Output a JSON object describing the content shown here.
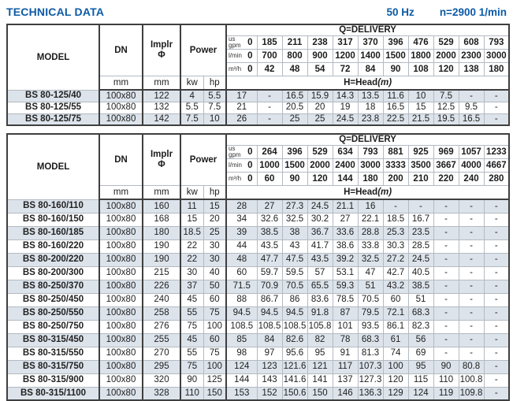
{
  "header": {
    "title": "TECHNICAL DATA",
    "frequency": "50 Hz",
    "speed": "n=2900 1/min"
  },
  "labels": {
    "model": "MODEL",
    "dn": "DN",
    "implr1": "Implr",
    "implr2": "Φ",
    "power": "Power",
    "mm": "mm",
    "kw": "kw",
    "hp": "hp",
    "q_delivery": "Q=DELIVERY",
    "head": "H=Head",
    "head_unit": "(m)",
    "unit_us": "us",
    "unit_gpm": "gpm",
    "unit_lmin": "l/min",
    "unit_m3h": "m³/h",
    "zero": "0"
  },
  "colors": {
    "accent_blue": "#0d5ba6",
    "stripe": "#dce3eb",
    "border_dark": "#3f3f3f",
    "border_light": "#b3bac2"
  },
  "table1": {
    "q_usgpm": [
      "185",
      "211",
      "238",
      "317",
      "370",
      "396",
      "476",
      "529",
      "608",
      "793"
    ],
    "q_lmin": [
      "700",
      "800",
      "900",
      "1200",
      "1400",
      "1500",
      "1800",
      "2000",
      "2300",
      "3000"
    ],
    "q_m3h": [
      "42",
      "48",
      "54",
      "72",
      "84",
      "90",
      "108",
      "120",
      "138",
      "180"
    ],
    "rows": [
      {
        "model": "BS 80-125/40",
        "dn": "100x80",
        "implr": "122",
        "kw": "4",
        "hp": "5.5",
        "head": [
          "17",
          "-",
          "16.5",
          "15.9",
          "14.3",
          "13.5",
          "11.6",
          "10",
          "7.5",
          "-",
          "-"
        ]
      },
      {
        "model": "BS 80-125/55",
        "dn": "100x80",
        "implr": "132",
        "kw": "5.5",
        "hp": "7.5",
        "head": [
          "21",
          "-",
          "20.5",
          "20",
          "19",
          "18",
          "16.5",
          "15",
          "12.5",
          "9.5",
          "-"
        ]
      },
      {
        "model": "BS 80-125/75",
        "dn": "100x80",
        "implr": "142",
        "kw": "7.5",
        "hp": "10",
        "head": [
          "26",
          "-",
          "25",
          "25",
          "24.5",
          "23.8",
          "22.5",
          "21.5",
          "19.5",
          "16.5",
          "-"
        ]
      }
    ]
  },
  "table2": {
    "q_usgpm": [
      "264",
      "396",
      "529",
      "634",
      "793",
      "881",
      "925",
      "969",
      "1057",
      "1233"
    ],
    "q_lmin": [
      "1000",
      "1500",
      "2000",
      "2400",
      "3000",
      "3333",
      "3500",
      "3667",
      "4000",
      "4667"
    ],
    "q_m3h": [
      "60",
      "90",
      "120",
      "144",
      "180",
      "200",
      "210",
      "220",
      "240",
      "280"
    ],
    "rows": [
      {
        "model": "BS 80-160/110",
        "dn": "100x80",
        "implr": "160",
        "kw": "11",
        "hp": "15",
        "head": [
          "28",
          "27",
          "27.3",
          "24.5",
          "21.1",
          "16",
          "-",
          "-",
          "-",
          "-",
          "-"
        ]
      },
      {
        "model": "BS 80-160/150",
        "dn": "100x80",
        "implr": "168",
        "kw": "15",
        "hp": "20",
        "head": [
          "34",
          "32.6",
          "32.5",
          "30.2",
          "27",
          "22.1",
          "18.5",
          "16.7",
          "-",
          "-",
          "-"
        ]
      },
      {
        "model": "BS 80-160/185",
        "dn": "100x80",
        "implr": "180",
        "kw": "18.5",
        "hp": "25",
        "head": [
          "39",
          "38.5",
          "38",
          "36.7",
          "33.6",
          "28.8",
          "25.3",
          "23.5",
          "-",
          "-",
          "-"
        ]
      },
      {
        "model": "BS 80-160/220",
        "dn": "100x80",
        "implr": "190",
        "kw": "22",
        "hp": "30",
        "head": [
          "44",
          "43.5",
          "43",
          "41.7",
          "38.6",
          "33.8",
          "30.3",
          "28.5",
          "-",
          "-",
          "-"
        ]
      },
      {
        "model": "BS 80-200/220",
        "dn": "100x80",
        "implr": "190",
        "kw": "22",
        "hp": "30",
        "head": [
          "48",
          "47.7",
          "47.5",
          "43.5",
          "39.2",
          "32.5",
          "27.2",
          "24.5",
          "-",
          "-",
          "-"
        ]
      },
      {
        "model": "BS 80-200/300",
        "dn": "100x80",
        "implr": "215",
        "kw": "30",
        "hp": "40",
        "head": [
          "60",
          "59.7",
          "59.5",
          "57",
          "53.1",
          "47",
          "42.7",
          "40.5",
          "-",
          "-",
          "-"
        ]
      },
      {
        "model": "BS 80-250/370",
        "dn": "100x80",
        "implr": "226",
        "kw": "37",
        "hp": "50",
        "head": [
          "71.5",
          "70.9",
          "70.5",
          "65.5",
          "59.3",
          "51",
          "43.2",
          "38.5",
          "-",
          "-",
          "-"
        ]
      },
      {
        "model": "BS 80-250/450",
        "dn": "100x80",
        "implr": "240",
        "kw": "45",
        "hp": "60",
        "head": [
          "88",
          "86.7",
          "86",
          "83.6",
          "78.5",
          "70.5",
          "60",
          "51",
          "-",
          "-",
          "-"
        ]
      },
      {
        "model": "BS 80-250/550",
        "dn": "100x80",
        "implr": "258",
        "kw": "55",
        "hp": "75",
        "head": [
          "94.5",
          "94.5",
          "94.5",
          "91.8",
          "87",
          "79.5",
          "72.1",
          "68.3",
          "-",
          "-",
          "-"
        ]
      },
      {
        "model": "BS 80-250/750",
        "dn": "100x80",
        "implr": "276",
        "kw": "75",
        "hp": "100",
        "head": [
          "108.5",
          "108.5",
          "108.5",
          "105.8",
          "101",
          "93.5",
          "86.1",
          "82.3",
          "-",
          "-",
          "-"
        ]
      },
      {
        "model": "BS 80-315/450",
        "dn": "100x80",
        "implr": "255",
        "kw": "45",
        "hp": "60",
        "head": [
          "85",
          "84",
          "82.6",
          "82",
          "78",
          "68.3",
          "61",
          "56",
          "-",
          "-",
          "-"
        ]
      },
      {
        "model": "BS 80-315/550",
        "dn": "100x80",
        "implr": "270",
        "kw": "55",
        "hp": "75",
        "head": [
          "98",
          "97",
          "95.6",
          "95",
          "91",
          "81.3",
          "74",
          "69",
          "-",
          "-",
          "-"
        ]
      },
      {
        "model": "BS 80-315/750",
        "dn": "100x80",
        "implr": "295",
        "kw": "75",
        "hp": "100",
        "head": [
          "124",
          "123",
          "121.6",
          "121",
          "117",
          "107.3",
          "100",
          "95",
          "90",
          "80.8",
          "-"
        ]
      },
      {
        "model": "BS 80-315/900",
        "dn": "100x80",
        "implr": "320",
        "kw": "90",
        "hp": "125",
        "head": [
          "144",
          "143",
          "141.6",
          "141",
          "137",
          "127.3",
          "120",
          "115",
          "110",
          "100.8",
          "-"
        ]
      },
      {
        "model": "BS 80-315/1100",
        "dn": "100x80",
        "implr": "328",
        "kw": "110",
        "hp": "150",
        "head": [
          "153",
          "152",
          "150.6",
          "150",
          "146",
          "136.3",
          "129",
          "124",
          "119",
          "109.8",
          "-"
        ]
      }
    ]
  }
}
